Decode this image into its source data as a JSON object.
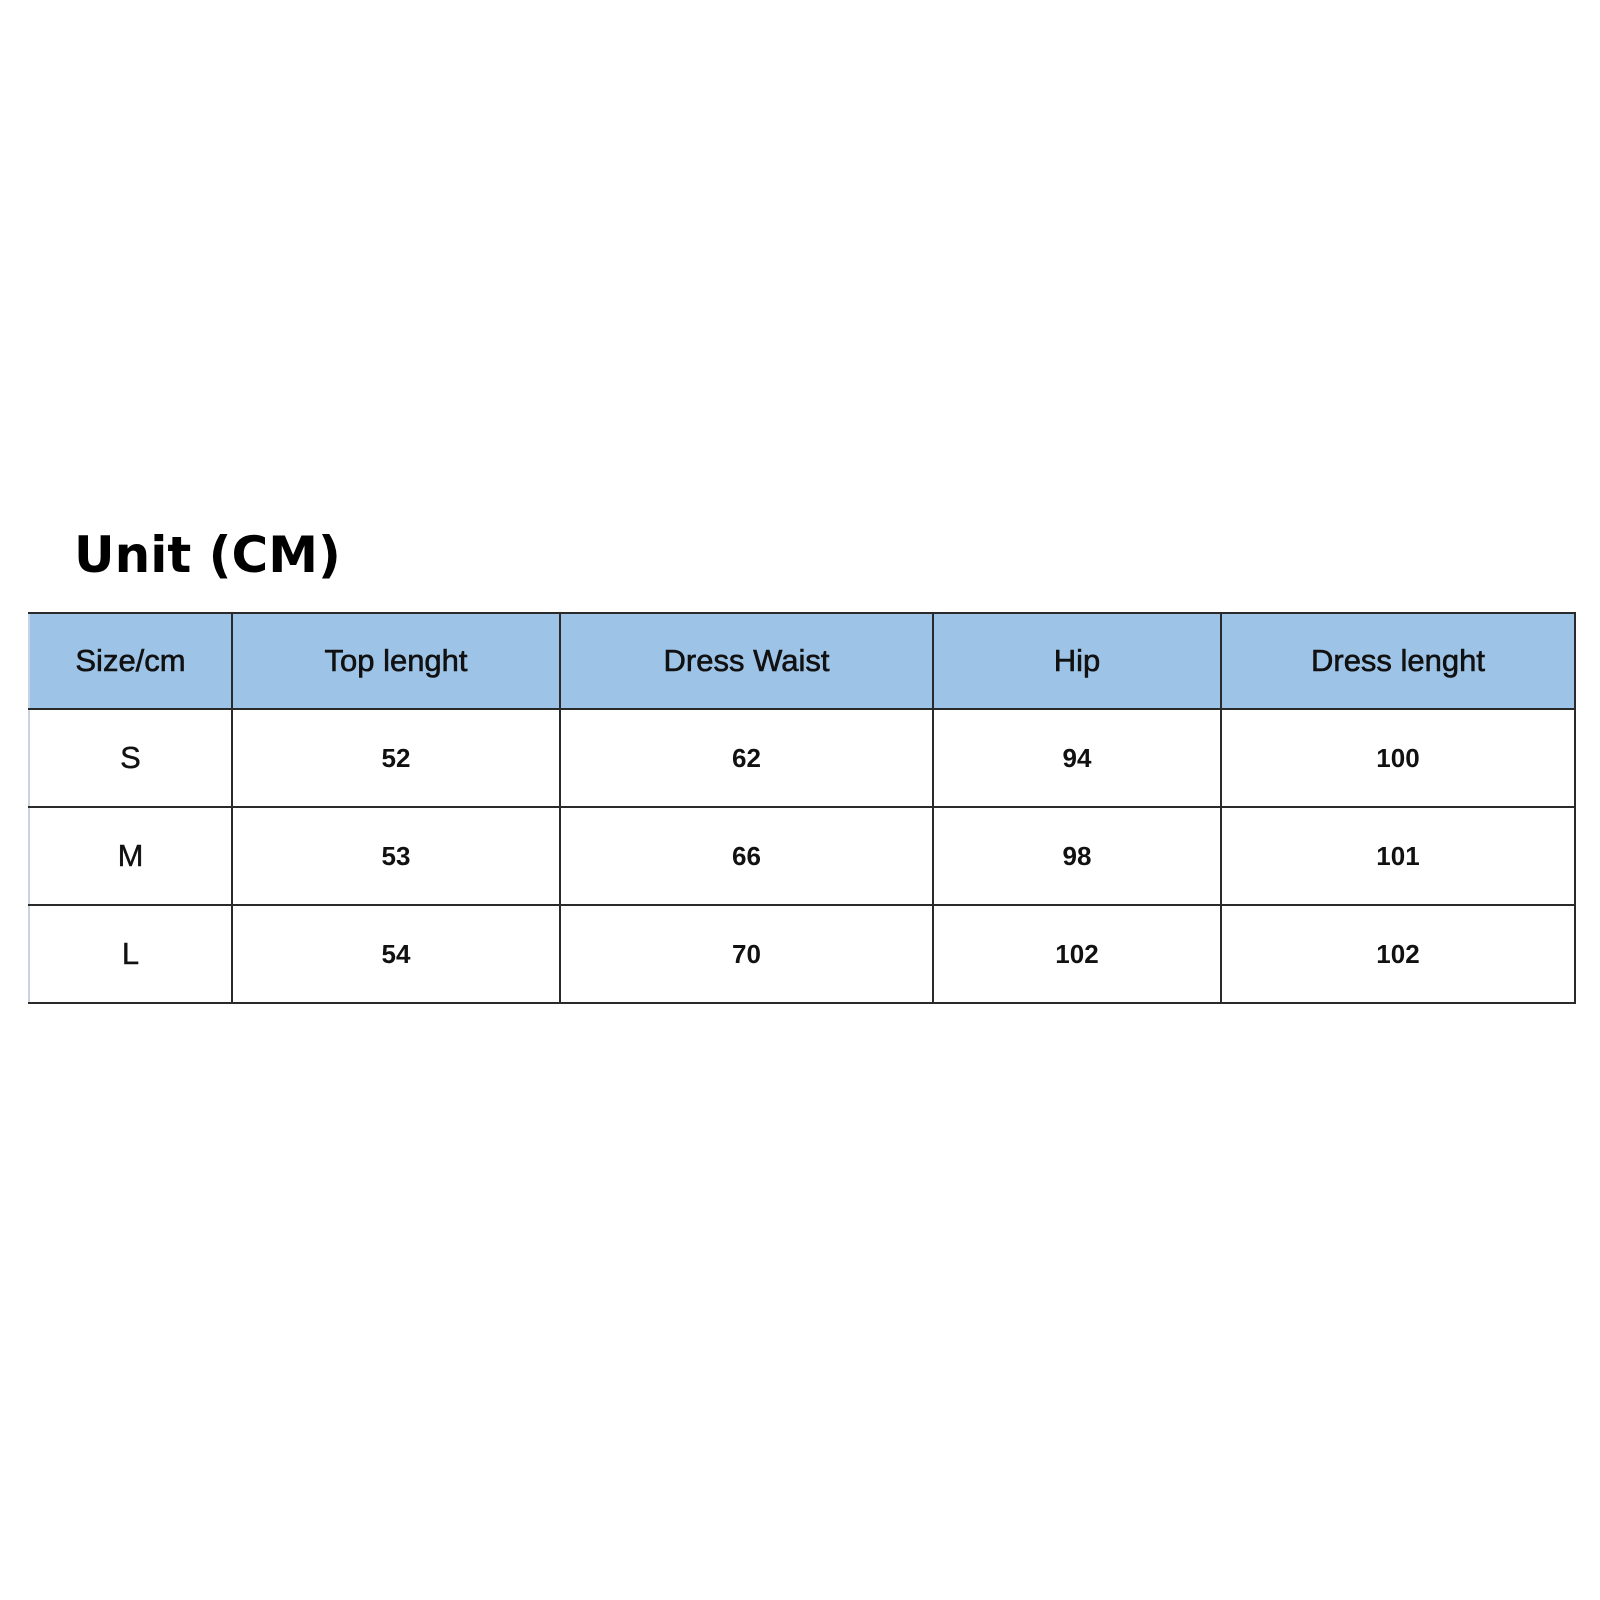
{
  "title": "Unit (CM)",
  "colors": {
    "header_bg": "#9dc3e6"
  },
  "table": {
    "headers": [
      "Size/cm",
      "Top lenght",
      "Dress Waist",
      "Hip",
      "Dress lenght"
    ],
    "rows": [
      [
        "S",
        "52",
        "62",
        "94",
        "100"
      ],
      [
        "M",
        "53",
        "66",
        "98",
        "101"
      ],
      [
        "L",
        "54",
        "70",
        "102",
        "102"
      ]
    ]
  }
}
